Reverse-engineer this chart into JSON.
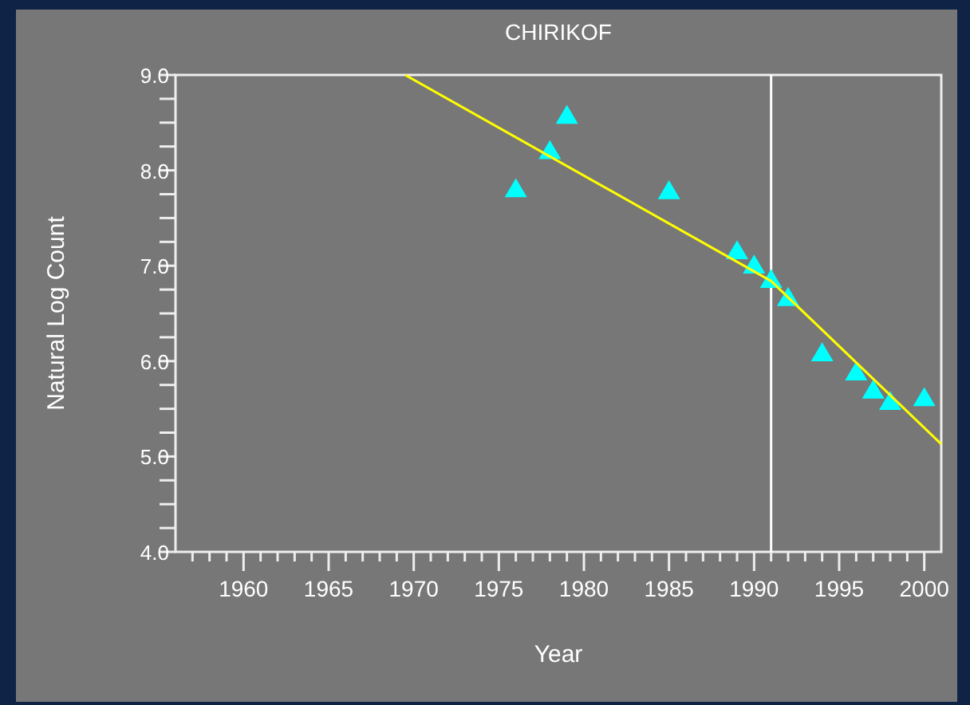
{
  "chart_data": {
    "type": "scatter",
    "title": "CHIRIKOF",
    "xlabel": "Year",
    "ylabel": "Natural Log Count",
    "xlim": [
      1956,
      2001
    ],
    "ylim": [
      4.0,
      9.0
    ],
    "xticks": [
      {
        "value": 1957,
        "label": null
      },
      {
        "value": 1958,
        "label": null
      },
      {
        "value": 1959,
        "label": null
      },
      1960,
      {
        "value": 1961,
        "label": null
      },
      {
        "value": 1962,
        "label": null
      },
      {
        "value": 1963,
        "label": null
      },
      {
        "value": 1964,
        "label": null
      },
      1965,
      {
        "value": 1966,
        "label": null
      },
      {
        "value": 1967,
        "label": null
      },
      {
        "value": 1968,
        "label": null
      },
      {
        "value": 1969,
        "label": null
      },
      1970,
      {
        "value": 1971,
        "label": null
      },
      {
        "value": 1972,
        "label": null
      },
      {
        "value": 1973,
        "label": null
      },
      {
        "value": 1974,
        "label": null
      },
      1975,
      {
        "value": 1976,
        "label": null
      },
      {
        "value": 1977,
        "label": null
      },
      {
        "value": 1978,
        "label": null
      },
      {
        "value": 1979,
        "label": null
      },
      1980,
      {
        "value": 1981,
        "label": null
      },
      {
        "value": 1982,
        "label": null
      },
      {
        "value": 1983,
        "label": null
      },
      {
        "value": 1984,
        "label": null
      },
      1985,
      {
        "value": 1986,
        "label": null
      },
      {
        "value": 1987,
        "label": null
      },
      {
        "value": 1988,
        "label": null
      },
      {
        "value": 1989,
        "label": null
      },
      1990,
      {
        "value": 1991,
        "label": null
      },
      {
        "value": 1992,
        "label": null
      },
      {
        "value": 1993,
        "label": null
      },
      {
        "value": 1994,
        "label": null
      },
      1995,
      {
        "value": 1996,
        "label": null
      },
      {
        "value": 1997,
        "label": null
      },
      {
        "value": 1998,
        "label": null
      },
      {
        "value": 1999,
        "label": null
      },
      2000
    ],
    "yticks": [
      {
        "value": 4.0,
        "label": "4.0"
      },
      {
        "value": 4.25,
        "label": null
      },
      {
        "value": 4.5,
        "label": null
      },
      {
        "value": 4.75,
        "label": null
      },
      {
        "value": 5.0,
        "label": "5.0"
      },
      {
        "value": 5.25,
        "label": null
      },
      {
        "value": 5.5,
        "label": null
      },
      {
        "value": 5.75,
        "label": null
      },
      {
        "value": 6.0,
        "label": "6.0"
      },
      {
        "value": 6.25,
        "label": null
      },
      {
        "value": 6.5,
        "label": null
      },
      {
        "value": 6.75,
        "label": null
      },
      {
        "value": 7.0,
        "label": "7.0"
      },
      {
        "value": 7.25,
        "label": null
      },
      {
        "value": 7.5,
        "label": null
      },
      {
        "value": 7.75,
        "label": null
      },
      {
        "value": 8.0,
        "label": "8.0"
      },
      {
        "value": 8.25,
        "label": null
      },
      {
        "value": 8.5,
        "label": null
      },
      {
        "value": 8.75,
        "label": null
      },
      {
        "value": 9.0,
        "label": "9.0"
      }
    ],
    "grid": false,
    "ref_lines": [
      {
        "axis": "x",
        "value": 1991,
        "color": "#ffffff"
      }
    ],
    "series": [
      {
        "color": "#00ffff",
        "marker": "triangle",
        "x": [
          1976,
          1978,
          1979,
          1985,
          1989,
          1990,
          1991,
          1992,
          1994,
          1996,
          1997,
          1998,
          2000
        ],
        "values": [
          7.8,
          8.2,
          8.57,
          7.78,
          7.15,
          7.0,
          6.85,
          6.66,
          6.08,
          5.88,
          5.69,
          5.57,
          5.61
        ]
      },
      {
        "type": "line",
        "color": "#ffff00",
        "marker": "none",
        "x": [
          1969.5,
          1991,
          2001
        ],
        "values": [
          9.0,
          6.84,
          5.13
        ]
      }
    ]
  }
}
